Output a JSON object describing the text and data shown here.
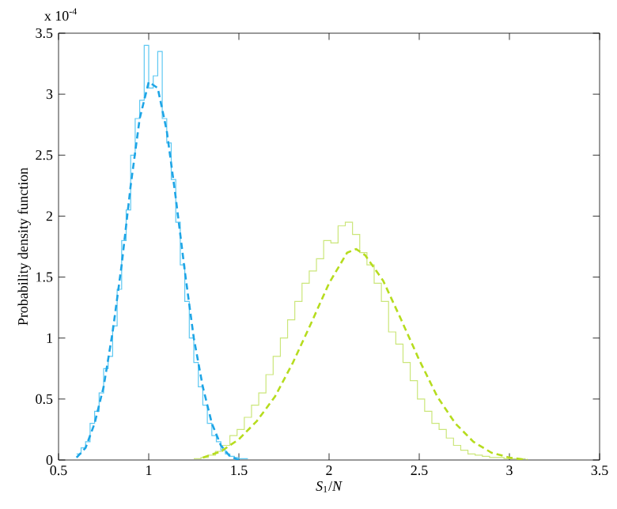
{
  "chart_data": {
    "type": "line",
    "xlabel": "*S*$_{1}$/*N*",
    "ylabel": "Probability density function",
    "annotations": [
      "x 10$^{-4}$"
    ],
    "xlim": [
      0.5,
      3.5
    ],
    "xticks": [
      {
        "value": 0.5,
        "label": "0.5"
      },
      1,
      1.5,
      2,
      2.5,
      3,
      3.5
    ],
    "ylim": [
      0,
      3.5
    ],
    "yticks": [
      0,
      0.5,
      1,
      1.5,
      2,
      2.5,
      3,
      3.5
    ],
    "grid": false,
    "series": [
      {
        "type": "step",
        "color": "#5ec8f2",
        "x": [
          0.6,
          0.625,
          0.65,
          0.675,
          0.7,
          0.725,
          0.75,
          0.775,
          0.8,
          0.825,
          0.85,
          0.875,
          0.9,
          0.925,
          0.95,
          0.975,
          1.0,
          1.025,
          1.05,
          1.075,
          1.1,
          1.125,
          1.15,
          1.175,
          1.2,
          1.225,
          1.25,
          1.275,
          1.3,
          1.325,
          1.35,
          1.375,
          1.4,
          1.425,
          1.45,
          1.475,
          1.5,
          1.525,
          1.55
        ],
        "values": [
          0.05,
          0.1,
          0.15,
          0.3,
          0.4,
          0.55,
          0.75,
          0.85,
          1.1,
          1.4,
          1.8,
          2.05,
          2.5,
          2.8,
          2.95,
          3.4,
          3.05,
          3.15,
          3.35,
          2.8,
          2.6,
          2.3,
          1.95,
          1.6,
          1.3,
          1.0,
          0.8,
          0.6,
          0.45,
          0.3,
          0.2,
          0.15,
          0.08,
          0.05,
          0.03,
          0.02,
          0.01,
          0.01,
          0.01
        ]
      },
      {
        "type": "step",
        "color": "#cbe67a",
        "x": [
          1.25,
          1.29,
          1.33,
          1.37,
          1.41,
          1.45,
          1.49,
          1.53,
          1.57,
          1.61,
          1.65,
          1.69,
          1.73,
          1.77,
          1.81,
          1.85,
          1.89,
          1.93,
          1.97,
          2.01,
          2.05,
          2.09,
          2.13,
          2.17,
          2.21,
          2.25,
          2.29,
          2.33,
          2.37,
          2.41,
          2.45,
          2.49,
          2.53,
          2.57,
          2.61,
          2.65,
          2.69,
          2.73,
          2.77,
          2.81,
          2.85,
          2.89,
          2.93,
          2.97,
          3.01,
          3.05,
          3.09
        ],
        "values": [
          0.01,
          0.02,
          0.04,
          0.07,
          0.12,
          0.2,
          0.25,
          0.35,
          0.45,
          0.55,
          0.7,
          0.85,
          1.0,
          1.15,
          1.3,
          1.45,
          1.55,
          1.65,
          1.8,
          1.78,
          1.92,
          1.95,
          1.85,
          1.7,
          1.6,
          1.45,
          1.3,
          1.05,
          0.95,
          0.8,
          0.65,
          0.5,
          0.4,
          0.3,
          0.25,
          0.18,
          0.12,
          0.08,
          0.05,
          0.04,
          0.03,
          0.02,
          0.02,
          0.01,
          0.01,
          0.01,
          0.01
        ]
      },
      {
        "line_style": "dashed",
        "color": "#1ea5e6",
        "x": [
          0.6,
          0.65,
          0.7,
          0.75,
          0.8,
          0.85,
          0.9,
          0.95,
          1.0,
          1.05,
          1.1,
          1.15,
          1.2,
          1.25,
          1.3,
          1.35,
          1.4,
          1.45,
          1.5
        ],
        "values": [
          0.02,
          0.1,
          0.3,
          0.6,
          1.05,
          1.6,
          2.25,
          2.8,
          3.1,
          3.05,
          2.7,
          2.15,
          1.55,
          1.0,
          0.6,
          0.3,
          0.12,
          0.03,
          0.0
        ]
      },
      {
        "line_style": "dashed",
        "color": "#b6dc1e",
        "x": [
          1.3,
          1.4,
          1.5,
          1.6,
          1.7,
          1.8,
          1.9,
          2.0,
          2.1,
          2.15,
          2.2,
          2.3,
          2.4,
          2.5,
          2.6,
          2.7,
          2.8,
          2.9,
          3.0,
          3.1
        ],
        "values": [
          0.02,
          0.07,
          0.17,
          0.32,
          0.52,
          0.8,
          1.12,
          1.45,
          1.7,
          1.73,
          1.68,
          1.47,
          1.15,
          0.82,
          0.52,
          0.3,
          0.15,
          0.06,
          0.02,
          0.0
        ]
      }
    ]
  }
}
